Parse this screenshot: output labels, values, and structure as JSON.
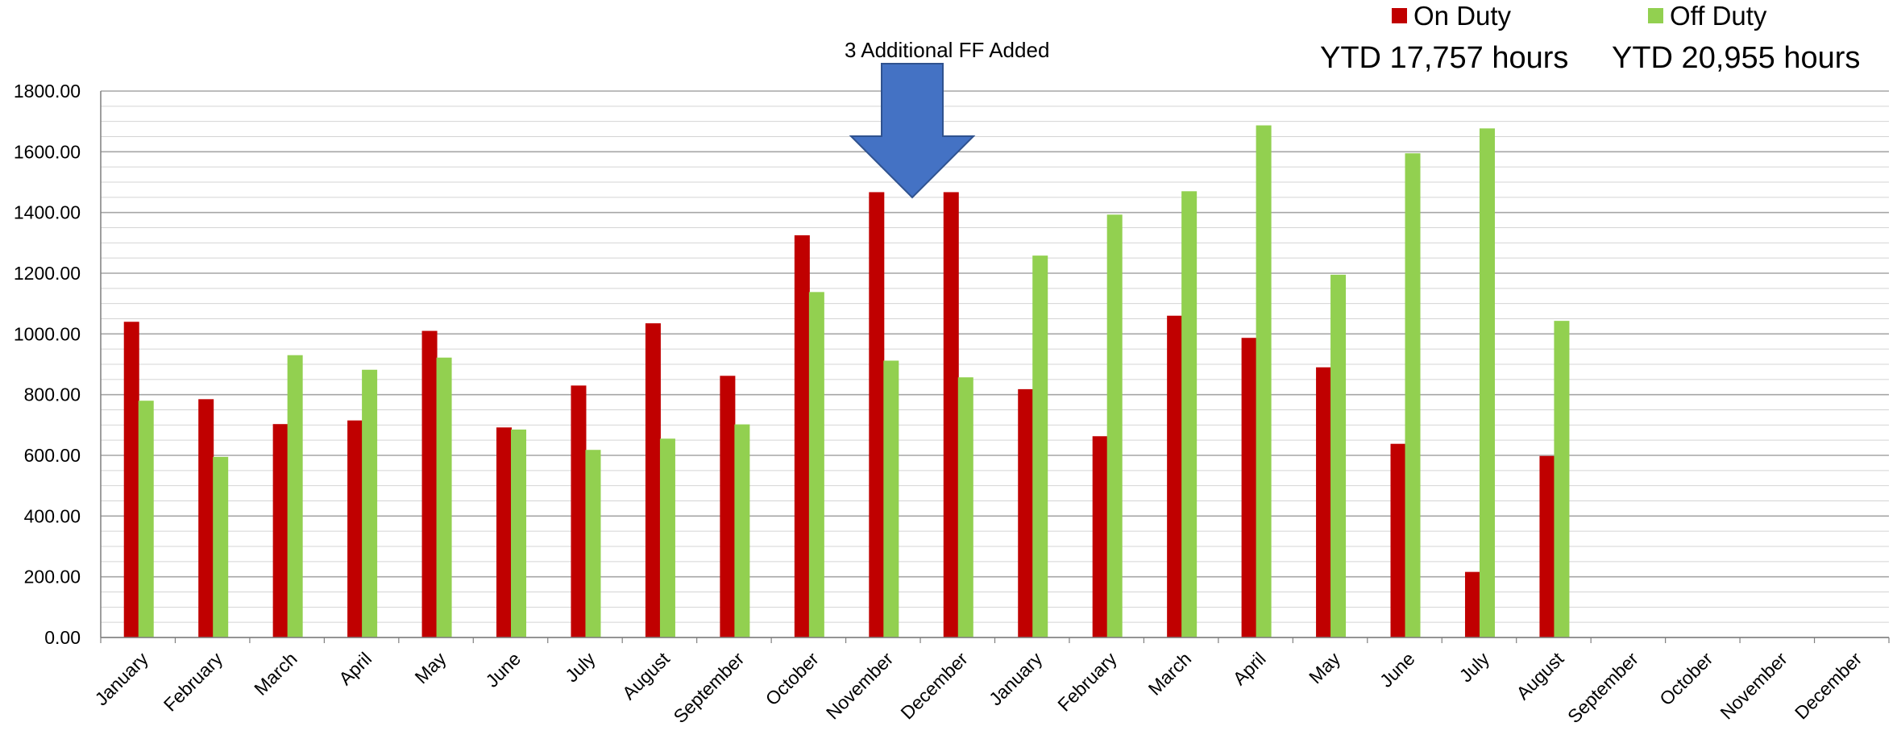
{
  "chart_data": {
    "type": "bar",
    "categories": [
      "January",
      "February",
      "March",
      "April",
      "May",
      "June",
      "July",
      "August",
      "September",
      "October",
      "November",
      "December",
      "January",
      "February",
      "March",
      "April",
      "May",
      "June",
      "July",
      "August",
      "September",
      "October",
      "November",
      "December"
    ],
    "series": [
      {
        "name": "On Duty",
        "color": "#c00000",
        "values": [
          1040,
          785,
          703,
          715,
          1010,
          692,
          830,
          1035,
          862,
          1325,
          1467,
          1467,
          818,
          663,
          1060,
          987,
          890,
          638,
          216,
          598,
          null,
          null,
          null,
          null
        ]
      },
      {
        "name": "Off Duty",
        "color": "#92d050",
        "values": [
          780,
          595,
          930,
          882,
          922,
          685,
          618,
          655,
          702,
          1138,
          912,
          857,
          1258,
          1393,
          1470,
          1687,
          1195,
          1595,
          1677,
          1043,
          null,
          null,
          null,
          null
        ]
      }
    ],
    "ytick_labels": [
      "0.00",
      "200.00",
      "400.00",
      "600.00",
      "800.00",
      "1000.00",
      "1200.00",
      "1400.00",
      "1600.00",
      "1800.00"
    ],
    "ylim": [
      0,
      1800
    ],
    "minor_grid_step": 50,
    "grid": true,
    "legend_position": "top-right",
    "annotation": {
      "text": "3 Additional FF Added",
      "arrow_color": "#4472c4",
      "arrow_stroke": "#2f528f"
    },
    "ytd": {
      "on_duty": "YTD 17,757 hours",
      "off_duty": "YTD 20,955 hours"
    }
  }
}
